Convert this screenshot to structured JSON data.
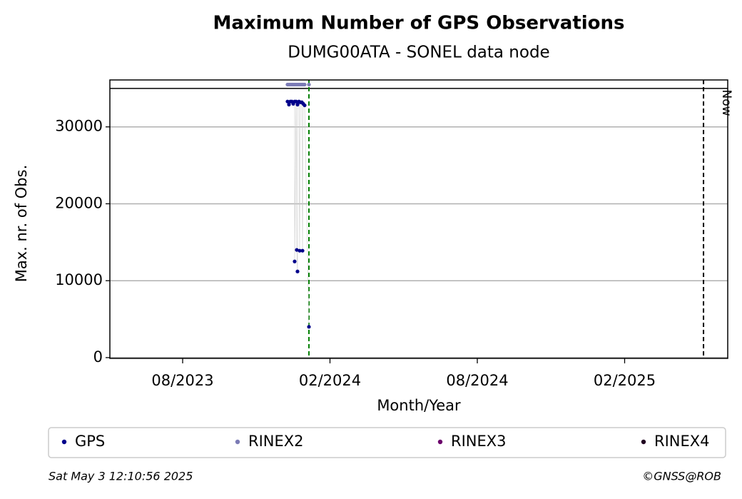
{
  "chart_data": {
    "type": "scatter",
    "title": "Maximum Number of GPS Observations",
    "subtitle": "DUMG00ATA - SONEL data node",
    "x_label": "Month/Year",
    "y_label": "Max. nr. of Obs.",
    "xlim": [
      2023.3363,
      2025.4332
    ],
    "ylim": [
      -100,
      36100
    ],
    "xticks": [
      {
        "value": 2023.5833,
        "label": "08/2023"
      },
      {
        "value": 2024.0833,
        "label": "02/2024"
      },
      {
        "value": 2024.5833,
        "label": "08/2024"
      },
      {
        "value": 2025.0833,
        "label": "02/2025"
      }
    ],
    "yticks": [
      0,
      10000,
      20000,
      30000
    ],
    "grid": true,
    "ref_line": 35000,
    "marker_line": 2024.0119,
    "now_line": 2025.351,
    "now_label": "Now",
    "series": [
      {
        "name": "GPS",
        "color": "#00008b",
        "x": [
          2023.9392,
          2023.9441,
          2023.9489,
          2023.9538,
          2023.9586,
          2023.9634,
          2023.9634,
          2023.9683,
          2023.9707,
          2023.9731,
          2023.9731,
          2023.978,
          2023.9804,
          2023.9828,
          2023.9877,
          2023.9901,
          2023.9925,
          2023.9973,
          2024.0119
        ],
        "values": [
          33300,
          32900,
          33300,
          33300,
          33000,
          33300,
          12500,
          33300,
          14000,
          11200,
          32900,
          33300,
          13900,
          33200,
          33200,
          13900,
          33000,
          32800,
          4000
        ]
      },
      {
        "name": "RINEX2",
        "color": "#7b7bb5",
        "x": [
          2023.9392,
          2023.9441,
          2023.9489,
          2023.9538,
          2023.9586,
          2023.9634,
          2023.9683,
          2023.9731,
          2023.978,
          2023.9828,
          2023.9877,
          2023.9925,
          2023.9973,
          2024.0119
        ],
        "values": [
          35500,
          35500,
          35500,
          35500,
          35500,
          35500,
          35500,
          35500,
          35500,
          35500,
          35500,
          35500,
          35500,
          35500
        ]
      },
      {
        "name": "RINEX3",
        "color": "#6b006b",
        "x": [],
        "values": []
      },
      {
        "name": "RINEX4",
        "color": "#200020",
        "x": [],
        "values": []
      }
    ],
    "footer_left": "Sat May  3 12:10:56 2025",
    "footer_right": "©GNSS@ROB"
  }
}
